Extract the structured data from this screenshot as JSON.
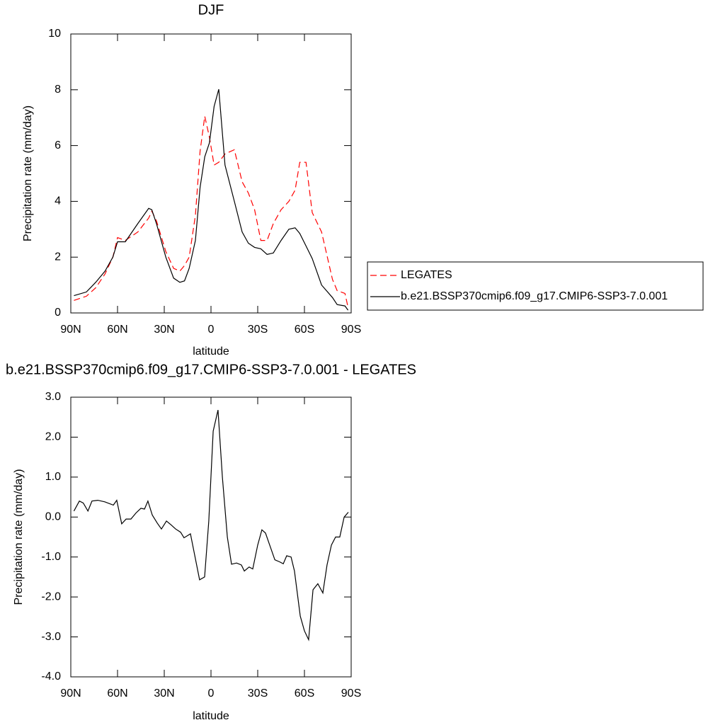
{
  "chart_data": [
    {
      "type": "line",
      "title": "DJF",
      "x_label": "latitude",
      "y_label": "Precipitation rate (mm/day)",
      "x": [
        88,
        80,
        74,
        68,
        63,
        60,
        55,
        47,
        40,
        38,
        35,
        29,
        24,
        20,
        17,
        14,
        10,
        7,
        4,
        1,
        -2,
        -5,
        -9,
        -15,
        -20,
        -24,
        -28,
        -32,
        -36,
        -40,
        -45,
        -50,
        -54,
        -57,
        -61,
        -65,
        -71,
        -78,
        -81,
        -86,
        -88
      ],
      "series": [
        {
          "name": "LEGATES",
          "color": "#ff0000",
          "dashed": true,
          "values": [
            0.45,
            0.6,
            0.9,
            1.4,
            2.0,
            2.7,
            2.6,
            2.9,
            3.4,
            3.65,
            3.3,
            2.2,
            1.6,
            1.5,
            1.7,
            2.0,
            3.5,
            5.8,
            7.05,
            6.3,
            5.3,
            5.4,
            5.7,
            5.85,
            4.7,
            4.3,
            3.7,
            2.6,
            2.6,
            3.2,
            3.7,
            4.0,
            4.4,
            5.4,
            5.4,
            3.6,
            2.9,
            1.2,
            0.8,
            0.7,
            0.2
          ]
        },
        {
          "name": "b.e21.BSSP370cmip6.f09_g17.CMIP6-SSP3-7.0.001",
          "color": "#000000",
          "dashed": false,
          "values": [
            0.62,
            0.75,
            1.1,
            1.5,
            2.0,
            2.55,
            2.55,
            3.2,
            3.75,
            3.7,
            3.2,
            2.0,
            1.25,
            1.1,
            1.15,
            1.6,
            2.6,
            4.5,
            5.6,
            6.1,
            7.4,
            8.02,
            5.3,
            4.0,
            2.9,
            2.5,
            2.35,
            2.3,
            2.1,
            2.15,
            2.6,
            3.0,
            3.05,
            2.85,
            2.4,
            1.95,
            1.0,
            0.55,
            0.3,
            0.25,
            0.1
          ]
        }
      ],
      "xlim": [
        90,
        -90
      ],
      "xticks": [
        {
          "value": 90,
          "label": "90N"
        },
        {
          "value": 60,
          "label": "60N"
        },
        {
          "value": 30,
          "label": "30N"
        },
        0,
        {
          "value": -30,
          "label": "30S"
        },
        {
          "value": -60,
          "label": "60S"
        },
        {
          "value": -90,
          "label": "90S"
        }
      ],
      "ylim": [
        0,
        10
      ],
      "yticks": [
        0,
        2,
        4,
        6,
        8,
        10
      ],
      "legend": "right"
    },
    {
      "type": "line",
      "title": "b.e21.BSSP370cmip6.f09_g17.CMIP6-SSP3-7.0.001 - LEGATES",
      "x_label": "latitude",
      "y_label": "Precipitation rate (mm/day)",
      "x": [
        88,
        84.5,
        82,
        79,
        76.4,
        72.7,
        68.2,
        62.7,
        60.5,
        57.3,
        54.5,
        51.4,
        48.2,
        45,
        42.7,
        40.5,
        37.7,
        34.5,
        31.8,
        28.6,
        25.5,
        22.7,
        19.5,
        17.3,
        13.2,
        7.3,
        4.1,
        1.4,
        -1.4,
        -4.5,
        -7.3,
        -10.5,
        -13.2,
        -16.4,
        -19.5,
        -21.4,
        -24.5,
        -26.8,
        -30,
        -32.7,
        -35,
        -37.7,
        -41,
        -44,
        -46.4,
        -48.6,
        -51.4,
        -53.6,
        -57.3,
        -60,
        -62.7,
        -65.5,
        -68.6,
        -71.8,
        -74.5,
        -77.3,
        -80,
        -82.7,
        -85.5,
        -88.2
      ],
      "values": [
        0.15,
        0.4,
        0.35,
        0.15,
        0.4,
        0.42,
        0.38,
        0.3,
        0.42,
        -0.17,
        -0.05,
        -0.05,
        0.1,
        0.22,
        0.2,
        0.4,
        0.05,
        -0.15,
        -0.3,
        -0.1,
        -0.2,
        -0.3,
        -0.38,
        -0.52,
        -0.42,
        -1.57,
        -1.5,
        -0.1,
        2.15,
        2.68,
        1.0,
        -0.5,
        -1.18,
        -1.15,
        -1.2,
        -1.35,
        -1.25,
        -1.3,
        -0.7,
        -0.32,
        -0.4,
        -0.7,
        -1.07,
        -1.12,
        -1.17,
        -0.97,
        -1.0,
        -1.35,
        -2.48,
        -2.85,
        -3.07,
        -1.82,
        -1.67,
        -1.9,
        -1.2,
        -0.7,
        -0.5,
        -0.5,
        0.0,
        0.12
      ],
      "color": "#000000",
      "xlim": [
        90,
        -90
      ],
      "xticks": [
        {
          "value": 90,
          "label": "90N"
        },
        {
          "value": 60,
          "label": "60N"
        },
        {
          "value": 30,
          "label": "30N"
        },
        0,
        {
          "value": -30,
          "label": "30S"
        },
        {
          "value": -60,
          "label": "60S"
        },
        {
          "value": -90,
          "label": "90S"
        }
      ],
      "ylim": [
        -4,
        3
      ],
      "yticks": [
        {
          "value": -4,
          "label": "-4.0"
        },
        {
          "value": -3,
          "label": "-3.0"
        },
        {
          "value": -2,
          "label": "-2.0"
        },
        {
          "value": -1,
          "label": "-1.0"
        },
        {
          "value": 0,
          "label": "0.0"
        },
        {
          "value": 1,
          "label": "1.0"
        },
        {
          "value": 2,
          "label": "2.0"
        },
        {
          "value": 3,
          "label": "3.0"
        }
      ]
    }
  ]
}
